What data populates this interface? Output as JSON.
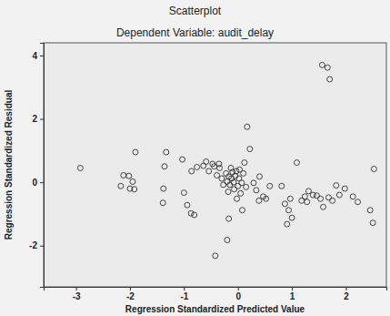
{
  "chart_data": {
    "type": "scatter",
    "title": "Scatterplot",
    "subtitle": "Dependent Variable: audit_delay",
    "x_label": "Regression Standardized Predicted Value",
    "y_label": "Regression Standardized Residual",
    "marker": "circle-open",
    "color": "#333333",
    "xlim": [
      -3.6,
      2.75
    ],
    "ylim": [
      -3.3,
      4.4
    ],
    "xticks": [
      -3,
      -2,
      -1,
      0,
      1,
      2
    ],
    "yticks": [
      -2,
      0,
      2,
      4
    ],
    "x": [
      -2.92,
      -2.12,
      -2.17,
      -2.02,
      -2.0,
      -1.92,
      -1.95,
      -1.9,
      -1.33,
      -1.36,
      -1.38,
      -1.39,
      -1.03,
      -1.0,
      -0.94,
      -0.87,
      -0.81,
      -0.86,
      -0.76,
      -0.64,
      -0.59,
      -0.54,
      -0.47,
      -0.44,
      -0.39,
      -0.35,
      -0.34,
      -0.3,
      -0.27,
      -0.22,
      -0.2,
      -0.18,
      -0.17,
      -0.15,
      -0.13,
      -0.12,
      -0.1,
      -0.08,
      -0.07,
      -0.05,
      -0.03,
      -0.02,
      0.0,
      0.02,
      0.03,
      0.05,
      0.07,
      0.08,
      0.1,
      0.12,
      0.15,
      -0.17,
      -0.2,
      -0.42,
      0.17,
      0.22,
      0.29,
      0.34,
      0.39,
      0.4,
      0.47,
      0.52,
      0.59,
      0.81,
      0.87,
      0.94,
      0.97,
      1.09,
      1.18,
      1.24,
      1.28,
      1.31,
      1.39,
      1.46,
      1.53,
      1.58,
      1.68,
      1.75,
      1.82,
      1.88,
      1.98,
      2.13,
      2.22,
      2.52,
      2.45,
      2.5,
      1.56,
      1.66,
      1.7,
      1.0,
      0.91
    ],
    "y": [
      0.45,
      0.22,
      -0.12,
      0.2,
      -0.2,
      -0.22,
      0.02,
      0.95,
      0.95,
      0.5,
      -0.2,
      -0.65,
      0.72,
      -0.33,
      -0.72,
      -0.98,
      -1.03,
      0.35,
      0.48,
      0.52,
      0.65,
      0.35,
      0.58,
      0.5,
      0.22,
      0.58,
      0.45,
      0.12,
      -0.08,
      0.28,
      0.02,
      -0.3,
      0.18,
      -0.08,
      0.45,
      0.12,
      0.32,
      0.0,
      -0.22,
      0.2,
      0.35,
      -0.52,
      -0.12,
      0.12,
      0.4,
      -0.35,
      -0.02,
      -0.88,
      0.28,
      0.62,
      -0.15,
      -1.15,
      -1.82,
      -2.32,
      1.75,
      1.05,
      -0.02,
      -0.25,
      -0.58,
      0.18,
      -0.45,
      -0.52,
      -0.12,
      -0.12,
      -0.68,
      -0.88,
      -0.52,
      0.62,
      -0.58,
      -0.45,
      -0.62,
      -0.28,
      -0.4,
      -0.42,
      -0.52,
      -0.78,
      -0.48,
      -0.58,
      -0.1,
      -0.4,
      -0.2,
      -0.45,
      -0.62,
      0.42,
      -0.88,
      -1.28,
      3.7,
      3.62,
      3.25,
      -1.12,
      -1.32
    ]
  }
}
